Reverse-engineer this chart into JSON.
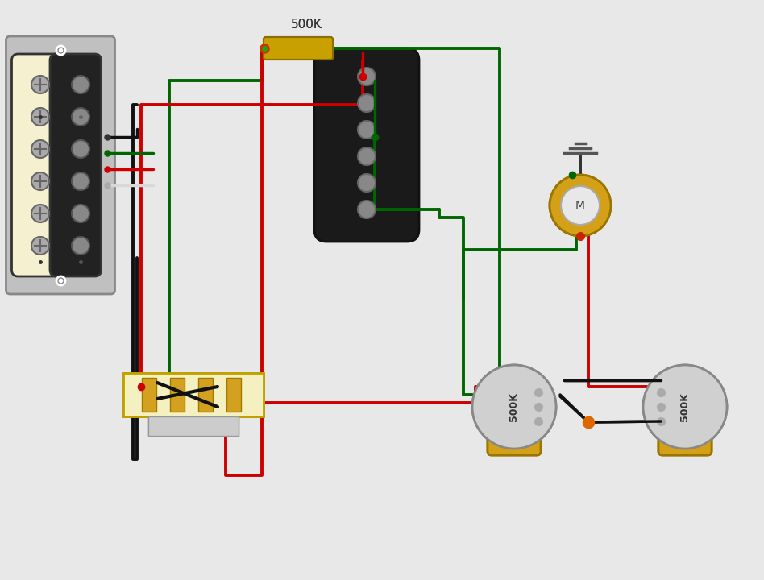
{
  "bg_color": "#e8e8e8",
  "title": "500K",
  "wire_red": "#cc0000",
  "wire_green": "#006600",
  "wire_black": "#111111",
  "wire_white": "#dddddd",
  "pot_color": "#d4a017",
  "pot_label1": "500K",
  "pot_label2": "500K",
  "cap_color": "#c8a000",
  "selector_color": "#c8a820",
  "humbucker_cream": "#f5f0d0",
  "humbucker_black": "#222222",
  "single_coil_color": "#111111",
  "output_color": "#d4a017"
}
